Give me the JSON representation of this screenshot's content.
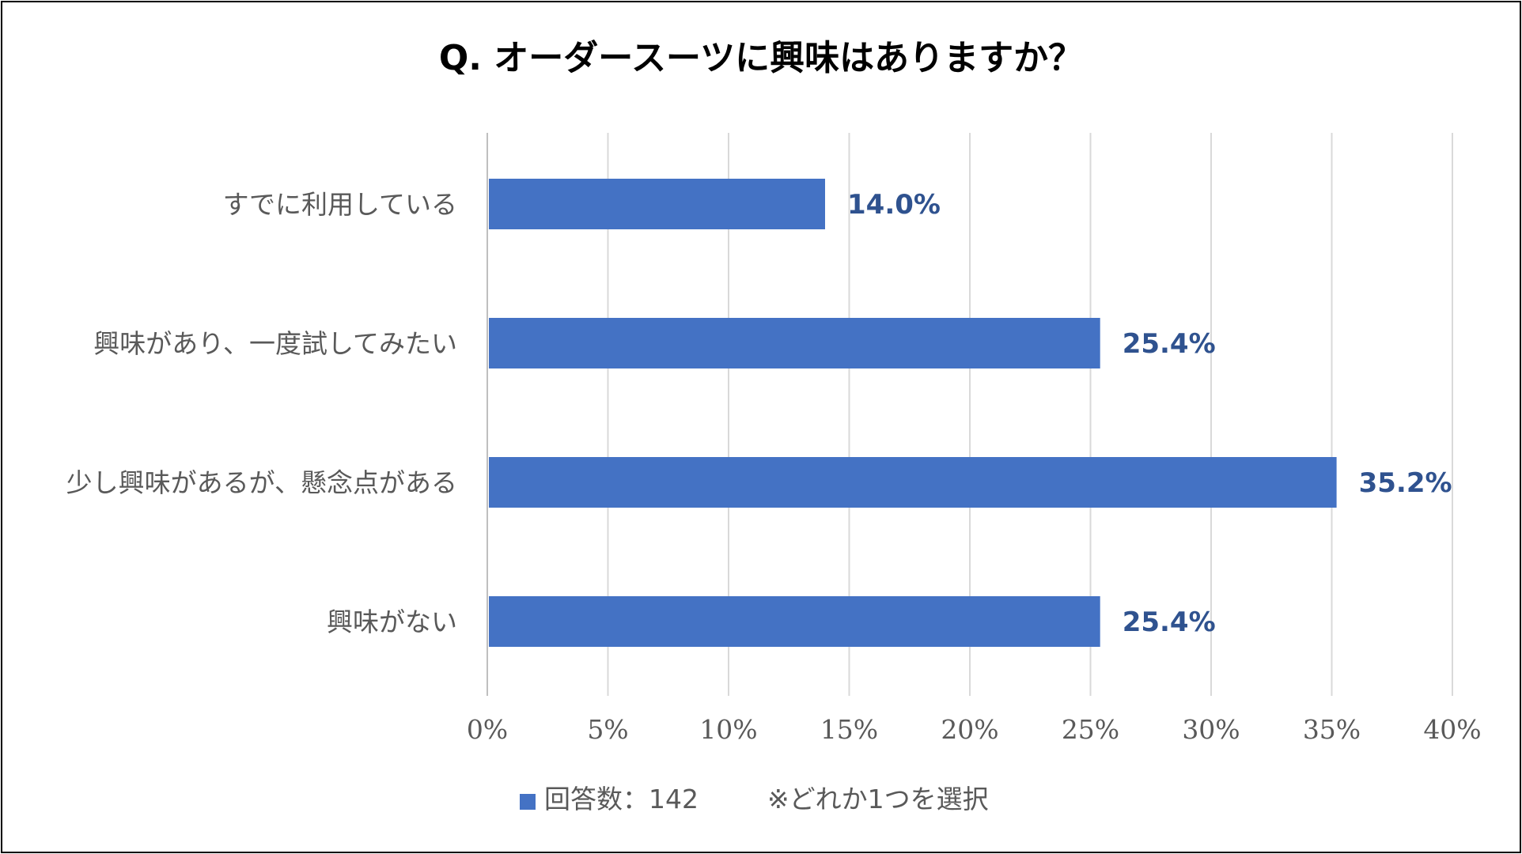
{
  "chart_data": {
    "type": "bar",
    "orientation": "horizontal",
    "title": "Q. オーダースーツに興味はありますか？",
    "categories": [
      "すでに利用している",
      "興味があり、一度試してみたい",
      "少し興味があるが、懸念点がある",
      "興味がない"
    ],
    "series": [
      {
        "name": "回答数：142",
        "values": [
          14.0,
          25.4,
          35.2,
          25.4
        ],
        "color": "#4472C4"
      }
    ],
    "value_labels": [
      "14.0%",
      "25.4%",
      "35.2%",
      "25.4%"
    ],
    "xlim": [
      0,
      40
    ],
    "xticks": [
      0,
      5,
      10,
      15,
      20,
      25,
      30,
      35,
      40
    ],
    "xtick_labels": [
      "0%",
      "5%",
      "10%",
      "15%",
      "20%",
      "25%",
      "30%",
      "35%",
      "40%"
    ],
    "grid": true,
    "legend_position": "bottom",
    "note": "※どれか1つを選択",
    "label_color": "#2F528F"
  }
}
